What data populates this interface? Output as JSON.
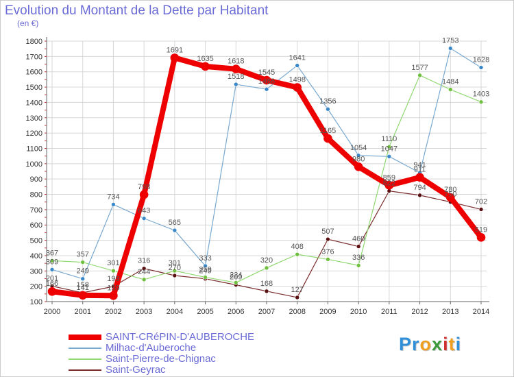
{
  "header": {
    "title": "Evolution du Montant de la Dette par Habitant",
    "unit": "(en €)"
  },
  "brand": {
    "name": "Proxiti",
    "letters": [
      "P",
      "r",
      "o",
      "x",
      "i",
      "t",
      "i"
    ],
    "colors": [
      "#2f8fd8",
      "#2f8fd8",
      "#f0a020",
      "#3a9a3a",
      "#d02f2f",
      "#f0a020",
      "#2f8fd8"
    ]
  },
  "colors": {
    "grid": "#d7d7d7",
    "axis": "#666666",
    "tick_red": "#cc3333",
    "label": "#555555"
  },
  "chart_data": {
    "type": "line",
    "title": "Evolution du Montant de la Dette par Habitant",
    "ylabel": "(en €)",
    "xlabel": "",
    "ylim": [
      100,
      1800
    ],
    "yticks": [
      100,
      200,
      300,
      400,
      500,
      600,
      700,
      800,
      900,
      1000,
      1100,
      1200,
      1300,
      1400,
      1500,
      1600,
      1700,
      1800
    ],
    "x": [
      2000,
      2001,
      2002,
      2003,
      2004,
      2005,
      2006,
      2007,
      2008,
      2009,
      2010,
      2011,
      2012,
      2013,
      2014
    ],
    "grid": true,
    "series": [
      {
        "name": "Saint-Geyrac",
        "color": "#7a2a2a",
        "marker": "#5a1010",
        "width": 1.2,
        "values": [
          201,
          158,
          199,
          316,
          270,
          249,
          209,
          168,
          127,
          507,
          460,
          822,
          794,
          750,
          702
        ],
        "labels": [
          "201",
          "158",
          "199",
          "316",
          "270",
          "249",
          "209",
          "168",
          "127",
          "507",
          "460",
          "822",
          "794",
          "750",
          "702"
        ]
      },
      {
        "name": "Saint-Pierre-de-Chignac",
        "color": "#90d870",
        "marker": "#70c040",
        "width": 1.2,
        "values": [
          367,
          357,
          301,
          244,
          301,
          259,
          224,
          320,
          408,
          376,
          336,
          1110,
          1577,
          1484,
          1403
        ],
        "labels": [
          "367",
          "357",
          "301",
          "244",
          "301",
          "259",
          "224",
          "320",
          "408",
          "376",
          "336",
          "1110",
          "1577",
          "1484",
          "1403"
        ]
      },
      {
        "name": "Milhac-d'Auberoche",
        "color": "#78a8d0",
        "marker": "#3a88c8",
        "width": 1.2,
        "values": [
          309,
          249,
          734,
          643,
          565,
          333,
          1518,
          1486,
          1641,
          1356,
          1054,
          1047,
          941,
          1753,
          1628
        ],
        "labels": [
          "309",
          "249",
          "734",
          "643",
          "565",
          "333",
          "1518",
          "1486",
          "1641",
          "1356",
          "1054",
          "1047",
          "941",
          "1753",
          "1628"
        ]
      },
      {
        "name": "SAINT-CRéPIN-D'AUBEROCHE",
        "color": "#ee0000",
        "marker": "#ee0000",
        "width": 8,
        "values": [
          166,
          141,
          139,
          798,
          1691,
          1635,
          1618,
          1545,
          1498,
          1165,
          980,
          859,
          911,
          780,
          519
        ],
        "labels": [
          "166",
          "141",
          "139",
          "798",
          "1691",
          "1635",
          "1618",
          "1545",
          "1498",
          "1165",
          "980",
          "859",
          "911",
          "780",
          "519"
        ]
      }
    ]
  },
  "legend": {
    "items": [
      {
        "label": "SAINT-CRéPIN-D'AUBEROCHE",
        "color": "#ee0000",
        "thick": true
      },
      {
        "label": "Milhac-d'Auberoche",
        "color": "#78a8d0",
        "thick": false
      },
      {
        "label": "Saint-Pierre-de-Chignac",
        "color": "#90d870",
        "thick": false
      },
      {
        "label": "Saint-Geyrac",
        "color": "#7a2a2a",
        "thick": false
      }
    ]
  }
}
